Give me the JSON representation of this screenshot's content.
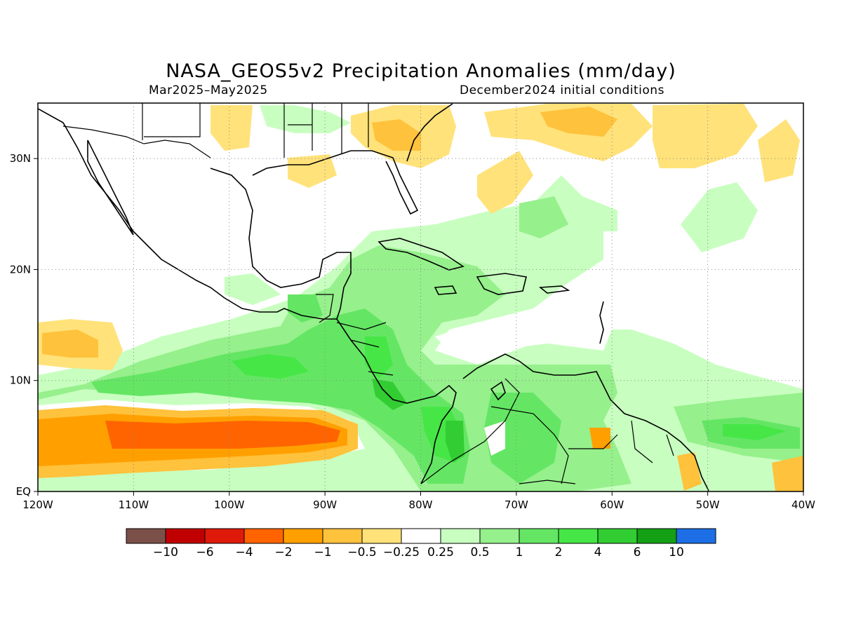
{
  "title": "NASA_GEOS5v2 Precipitation Anomalies (mm/day)",
  "subtitle_left": "Mar2025–May2025",
  "subtitle_right": "December2024 initial conditions",
  "map": {
    "lon_range": [
      -120,
      -40
    ],
    "lat_range": [
      0,
      35
    ],
    "grid": true,
    "x_ticks": [
      {
        "value": -120,
        "label": "120W"
      },
      {
        "value": -110,
        "label": "110W"
      },
      {
        "value": -100,
        "label": "100W"
      },
      {
        "value": -90,
        "label": "90W"
      },
      {
        "value": -80,
        "label": "80W"
      },
      {
        "value": -70,
        "label": "70W"
      },
      {
        "value": -60,
        "label": "60W"
      },
      {
        "value": -50,
        "label": "50W"
      },
      {
        "value": -40,
        "label": "40W"
      }
    ],
    "y_ticks": [
      {
        "value": 0,
        "label": "EQ"
      },
      {
        "value": 10,
        "label": "10N"
      },
      {
        "value": 20,
        "label": "20N"
      },
      {
        "value": 30,
        "label": "30N"
      }
    ]
  },
  "colorbar": {
    "colors": [
      "#7b5048",
      "#c00000",
      "#e01a0a",
      "#ff6400",
      "#ffa000",
      "#ffc23c",
      "#ffe27a",
      "#ffffff",
      "#c8ffc0",
      "#96f08c",
      "#64e664",
      "#46e646",
      "#32cd32",
      "#14a014",
      "#1e6ee6"
    ],
    "labels": [
      "−10",
      "−6",
      "−4",
      "−2",
      "−1",
      "−0.5",
      "−0.25",
      "0.25",
      "0.5",
      "1",
      "2",
      "4",
      "6",
      "10"
    ]
  }
}
